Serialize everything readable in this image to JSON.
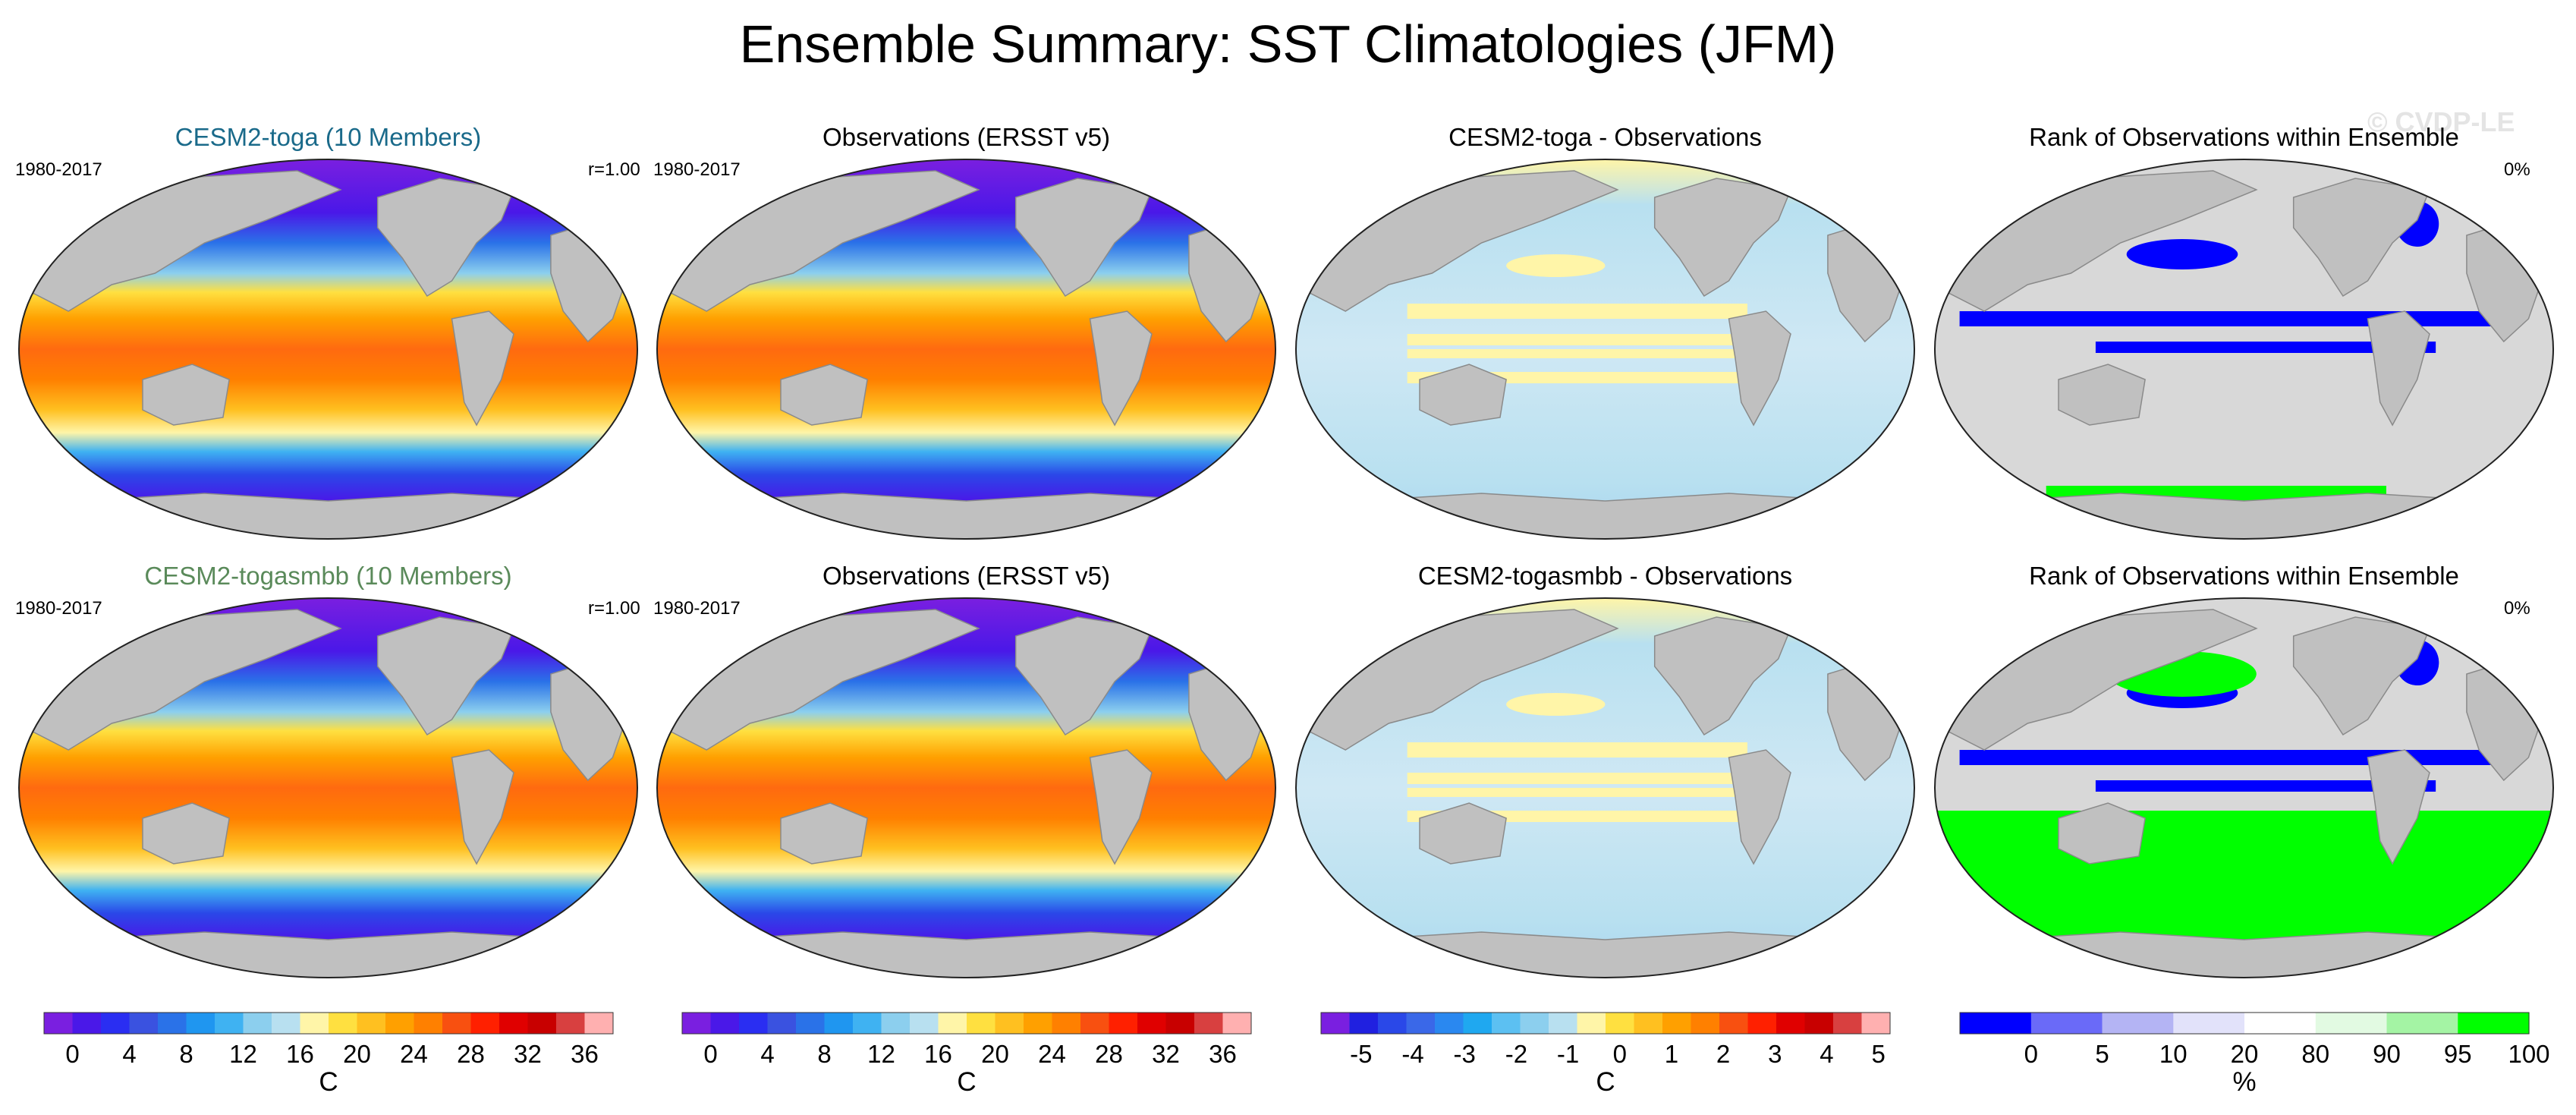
{
  "title": "Ensemble Summary: SST Climatologies (JFM)",
  "watermark": "© CVDP-LE",
  "panels": [
    {
      "row": 0,
      "col": 0,
      "title": "CESM2-toga (10 Members)",
      "title_color": "#1a6a8a",
      "left": "1980-2017",
      "right": "r=1.00",
      "kind": "sst"
    },
    {
      "row": 0,
      "col": 1,
      "title": "Observations (ERSST v5)",
      "title_color": "#000000",
      "left": "1980-2017",
      "right": "",
      "kind": "sst"
    },
    {
      "row": 0,
      "col": 2,
      "title": "CESM2-toga - Observations",
      "title_color": "#000000",
      "left": "",
      "right": "",
      "kind": "diff"
    },
    {
      "row": 0,
      "col": 3,
      "title": "Rank of Observations within Ensemble",
      "title_color": "#000000",
      "left": "",
      "right": "0%",
      "kind": "rank"
    },
    {
      "row": 1,
      "col": 0,
      "title": "CESM2-togasmbb (10 Members)",
      "title_color": "#5a8a5a",
      "left": "1980-2017",
      "right": "r=1.00",
      "kind": "sst"
    },
    {
      "row": 1,
      "col": 1,
      "title": "Observations (ERSST v5)",
      "title_color": "#000000",
      "left": "1980-2017",
      "right": "",
      "kind": "sst"
    },
    {
      "row": 1,
      "col": 2,
      "title": "CESM2-togasmbb - Observations",
      "title_color": "#000000",
      "left": "",
      "right": "",
      "kind": "diff"
    },
    {
      "row": 1,
      "col": 3,
      "title": "Rank of Observations within Ensemble",
      "title_color": "#000000",
      "left": "",
      "right": "0%",
      "kind": "rank"
    }
  ],
  "chart_data": [
    {
      "type": "heatmap",
      "name": "SST climatology colorbar",
      "colors": [
        "#7a1fe0",
        "#4a18e8",
        "#2a2ef2",
        "#3a52e0",
        "#2a72e8",
        "#1f96f0",
        "#3fb2f2",
        "#8ccfee",
        "#b8e0f0",
        "#fff5a8",
        "#ffe040",
        "#ffc020",
        "#ffa000",
        "#ff8000",
        "#f85010",
        "#ff2000",
        "#e00000",
        "#c80000",
        "#d84040",
        "#ffb0b0"
      ],
      "tick_labels": [
        "0",
        "4",
        "8",
        "12",
        "16",
        "20",
        "24",
        "28",
        "32",
        "36"
      ],
      "units": "C"
    },
    {
      "type": "heatmap",
      "name": "SST difference colorbar",
      "colors": [
        "#7a1fe0",
        "#2020e0",
        "#2a48e8",
        "#3a68e8",
        "#2a88f0",
        "#1fa8f0",
        "#5cc0f2",
        "#8ccfee",
        "#b8e0f0",
        "#fff5a8",
        "#ffe040",
        "#ffc020",
        "#ffa000",
        "#ff8000",
        "#f85010",
        "#ff2000",
        "#e00000",
        "#c80000",
        "#d84040",
        "#ffb0b0"
      ],
      "tick_labels": [
        "-5",
        "-4",
        "-3",
        "-2",
        "-1",
        "0",
        "1",
        "2",
        "3",
        "4",
        "5"
      ],
      "units": "C"
    },
    {
      "type": "heatmap",
      "name": "Rank colorbar",
      "colors": [
        "#0000ff",
        "#6a6af8",
        "#b4b4f4",
        "#e2e2fa",
        "#ffffff",
        "#e2fae2",
        "#a4f4a4",
        "#00ff00"
      ],
      "tick_labels": [
        "0",
        "5",
        "10",
        "20",
        "80",
        "90",
        "95",
        "100"
      ],
      "units": "%"
    }
  ]
}
